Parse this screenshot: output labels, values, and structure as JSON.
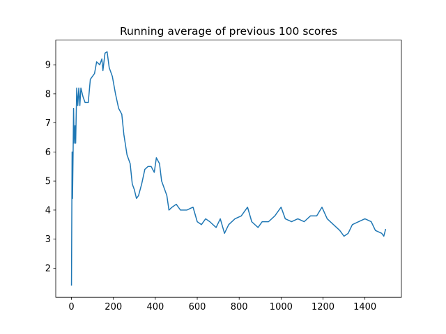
{
  "chart_data": {
    "type": "line",
    "title": "Running average of previous 100 scores",
    "x": [
      0,
      3,
      5,
      8,
      10,
      13,
      17,
      20,
      25,
      30,
      35,
      40,
      45,
      55,
      65,
      80,
      90,
      110,
      120,
      135,
      145,
      150,
      160,
      170,
      180,
      195,
      210,
      225,
      240,
      250,
      265,
      280,
      290,
      300,
      310,
      320,
      335,
      350,
      365,
      380,
      395,
      405,
      420,
      430,
      445,
      455,
      465,
      480,
      500,
      520,
      550,
      580,
      600,
      620,
      640,
      660,
      690,
      710,
      730,
      750,
      780,
      810,
      840,
      860,
      890,
      910,
      940,
      970,
      1000,
      1020,
      1050,
      1080,
      1110,
      1140,
      1170,
      1195,
      1220,
      1250,
      1280,
      1300,
      1320,
      1340,
      1370,
      1400,
      1430,
      1450,
      1480,
      1490,
      1499
    ],
    "series": [
      {
        "color": "#1f77b4",
        "values": [
          1.4,
          6.0,
          4.4,
          6.1,
          7.5,
          6.3,
          6.9,
          6.3,
          8.2,
          7.6,
          8.2,
          7.6,
          8.2,
          7.9,
          7.7,
          7.7,
          8.5,
          8.7,
          9.1,
          9.0,
          9.2,
          8.8,
          9.4,
          9.45,
          8.9,
          8.6,
          8.0,
          7.5,
          7.3,
          6.6,
          5.9,
          5.6,
          4.9,
          4.7,
          4.4,
          4.5,
          4.9,
          5.4,
          5.5,
          5.5,
          5.3,
          5.8,
          5.6,
          5.0,
          4.7,
          4.5,
          4.0,
          4.1,
          4.2,
          4.0,
          4.0,
          4.1,
          3.6,
          3.5,
          3.7,
          3.6,
          3.4,
          3.7,
          3.2,
          3.5,
          3.7,
          3.8,
          4.1,
          3.6,
          3.4,
          3.6,
          3.6,
          3.8,
          4.1,
          3.7,
          3.6,
          3.7,
          3.6,
          3.8,
          3.8,
          4.1,
          3.7,
          3.5,
          3.3,
          3.1,
          3.2,
          3.5,
          3.6,
          3.7,
          3.6,
          3.3,
          3.2,
          3.1,
          3.35
        ]
      }
    ],
    "xlim": [
      -75,
      1574
    ],
    "xticks": [
      0,
      200,
      400,
      600,
      800,
      1000,
      1200,
      1400
    ],
    "ylim": [
      1.0,
      9.85
    ],
    "yticks": [
      2,
      3,
      4,
      5,
      6,
      7,
      8,
      9
    ]
  }
}
